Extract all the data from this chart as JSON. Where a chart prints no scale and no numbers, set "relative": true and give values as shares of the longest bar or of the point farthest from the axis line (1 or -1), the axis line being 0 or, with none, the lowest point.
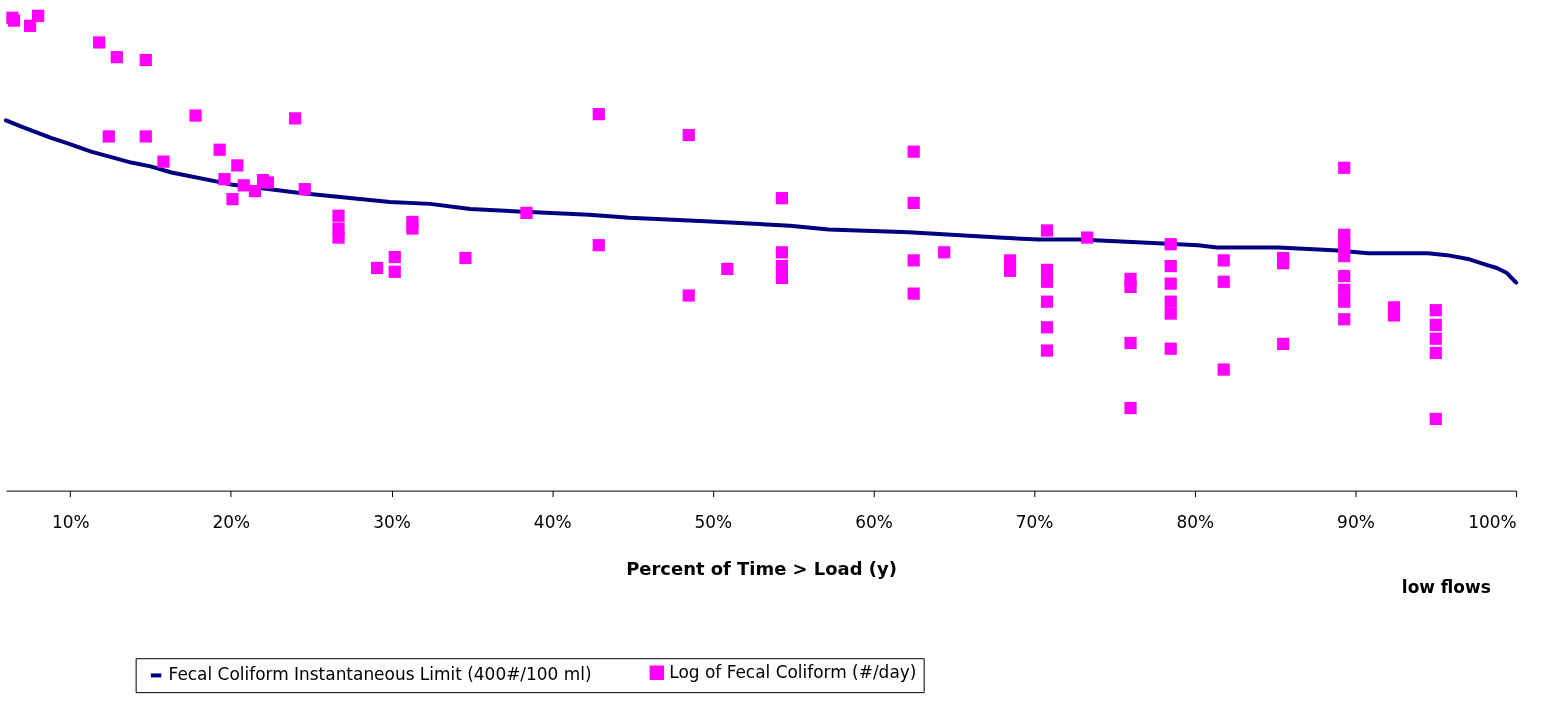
{
  "chart_data": {
    "type": "scatter",
    "xlabel": "Percent of Time > Load (y)",
    "relative": true,
    "legend": "bottom",
    "grid": false,
    "tick_labels": "x",
    "marker": "square",
    "xlim": [
      6,
      100
    ],
    "xticks": [
      {
        "value": 10,
        "label": "10%"
      },
      {
        "value": 20,
        "label": "20%"
      },
      {
        "value": 30,
        "label": "30%"
      },
      {
        "value": 40,
        "label": "40%"
      },
      {
        "value": 50,
        "label": "50%"
      },
      {
        "value": 60,
        "label": "60%"
      },
      {
        "value": 70,
        "label": "70%"
      },
      {
        "value": 80,
        "label": "80%"
      },
      {
        "value": 90,
        "label": "90%"
      },
      {
        "value": 100,
        "label": "100%"
      }
    ],
    "annotations": [
      "low flows"
    ],
    "series": [
      {
        "name": "Fecal Coliform Instantaneous Limit (400#/100 ml)",
        "type": "line",
        "marker": "none",
        "line_style": "solid",
        "color": "#000080",
        "x": [
          6.0,
          7.0,
          8.8,
          9.8,
          11.3,
          13.8,
          15.0,
          16.3,
          20.0,
          24.3,
          29.9,
          32.4,
          34.9,
          38.6,
          42.3,
          44.8,
          49.2,
          54.8,
          57.2,
          62.2,
          67.8,
          70.3,
          72.8,
          77.7,
          80.2,
          81.4,
          85.2,
          87.7,
          88.9,
          90.8,
          94.5,
          95.7,
          97.0,
          98.2,
          98.8,
          99.4,
          100
        ],
        "values": [
          0.78,
          0.766,
          0.743,
          0.732,
          0.714,
          0.691,
          0.683,
          0.67,
          0.645,
          0.627,
          0.608,
          0.604,
          0.593,
          0.587,
          0.581,
          0.575,
          0.568,
          0.558,
          0.55,
          0.544,
          0.533,
          0.529,
          0.529,
          0.521,
          0.517,
          0.512,
          0.512,
          0.508,
          0.506,
          0.5,
          0.5,
          0.496,
          0.488,
          0.475,
          0.469,
          0.459,
          0.438
        ]
      },
      {
        "name": "Log of Fecal Coliform (#/day)",
        "type": "scatter",
        "color": "#ff00ff",
        "x": [
          6.4,
          6.5,
          7.5,
          8.0,
          11.8,
          12.9,
          14.7,
          12.4,
          14.7,
          17.8,
          24.0,
          15.8,
          19.3,
          20.4,
          19.6,
          20.1,
          20.8,
          21.5,
          22.0,
          22.3,
          24.6,
          26.7,
          26.7,
          26.7,
          29.1,
          30.2,
          30.2,
          31.3,
          31.3,
          34.6,
          38.4,
          42.9,
          42.9,
          48.5,
          48.5,
          50.9,
          54.3,
          54.3,
          54.3,
          54.3,
          62.5,
          62.5,
          62.5,
          62.5,
          64.4,
          68.5,
          68.5,
          70.8,
          70.8,
          70.8,
          70.8,
          70.8,
          70.8,
          73.3,
          76.0,
          76.0,
          76.0,
          76.0,
          78.5,
          78.5,
          78.5,
          78.5,
          78.5,
          78.5,
          81.8,
          81.8,
          81.8,
          85.5,
          85.5,
          85.5,
          89.3,
          89.3,
          89.3,
          89.3,
          89.3,
          89.3,
          89.3,
          89.3,
          92.4,
          92.4,
          95.0,
          95.0,
          95.0,
          95.0,
          95.0
        ],
        "values": [
          0.996,
          0.99,
          0.979,
          1,
          0.944,
          0.913,
          0.907,
          0.746,
          0.746,
          0.79,
          0.784,
          0.693,
          0.718,
          0.685,
          0.656,
          0.614,
          0.643,
          0.631,
          0.654,
          0.649,
          0.635,
          0.579,
          0.552,
          0.533,
          0.469,
          0.492,
          0.461,
          0.566,
          0.552,
          0.49,
          0.585,
          0.793,
          0.517,
          0.749,
          0.411,
          0.467,
          0.616,
          0.502,
          0.473,
          0.448,
          0.714,
          0.606,
          0.485,
          0.415,
          0.502,
          0.485,
          0.463,
          0.548,
          0.465,
          0.44,
          0.398,
          0.344,
          0.295,
          0.533,
          0.446,
          0.429,
          0.311,
          0.174,
          0.519,
          0.473,
          0.436,
          0.398,
          0.373,
          0.299,
          0.485,
          0.44,
          0.255,
          0.49,
          0.479,
          0.309,
          0.68,
          0.539,
          0.519,
          0.494,
          0.452,
          0.423,
          0.398,
          0.361,
          0.386,
          0.369,
          0.38,
          0.349,
          0.32,
          0.29,
          0.151
        ]
      }
    ]
  }
}
